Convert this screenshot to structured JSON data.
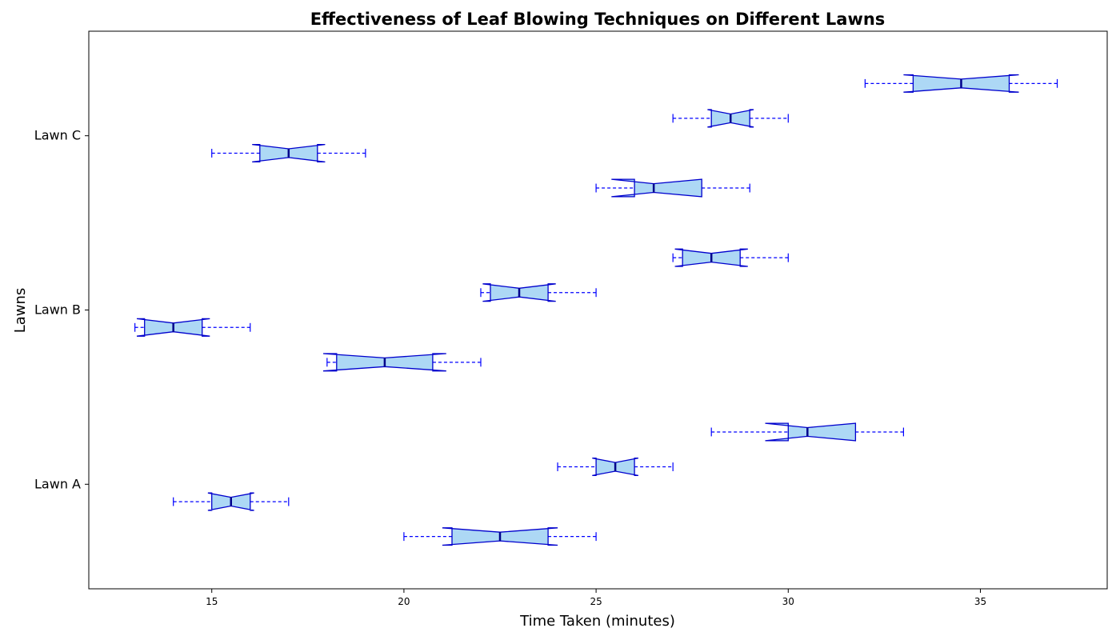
{
  "chart_data": {
    "type": "box",
    "orientation": "horizontal",
    "notched": true,
    "title": "Effectiveness of Leaf Blowing Techniques on Different Lawns",
    "xlabel": "Time Taken (minutes)",
    "ylabel": "Lawns",
    "xlim": [
      11.8,
      38.3
    ],
    "xticks": [
      15,
      20,
      25,
      30,
      35
    ],
    "categories": [
      "Lawn A",
      "Lawn B",
      "Lawn C"
    ],
    "colors": {
      "box_fill": "#add8f5",
      "box_edge": "#0000cd",
      "whisker": "#0000ff",
      "median": "#00008b"
    },
    "boxes": [
      {
        "category": "Lawn A",
        "offset": -0.3,
        "whislo": 20,
        "q1": 21.25,
        "notch_lo": 21.0,
        "med": 22.5,
        "notch_hi": 24.0,
        "q3": 23.75,
        "whishi": 25
      },
      {
        "category": "Lawn A",
        "offset": -0.1,
        "whislo": 14,
        "q1": 15.0,
        "notch_lo": 14.9,
        "med": 15.5,
        "notch_hi": 16.1,
        "q3": 16.0,
        "whishi": 17
      },
      {
        "category": "Lawn A",
        "offset": 0.1,
        "whislo": 24,
        "q1": 25.0,
        "notch_lo": 24.9,
        "med": 25.5,
        "notch_hi": 26.1,
        "q3": 26.0,
        "whishi": 27
      },
      {
        "category": "Lawn A",
        "offset": 0.3,
        "whislo": 28,
        "q1": 30.0,
        "notch_lo": 29.4,
        "med": 30.5,
        "notch_hi": 31.75,
        "q3": 31.75,
        "whishi": 33
      },
      {
        "category": "Lawn B",
        "offset": -0.3,
        "whislo": 18,
        "q1": 18.25,
        "notch_lo": 17.9,
        "med": 19.5,
        "notch_hi": 21.1,
        "q3": 20.75,
        "whishi": 22
      },
      {
        "category": "Lawn B",
        "offset": -0.1,
        "whislo": 13,
        "q1": 13.25,
        "notch_lo": 13.05,
        "med": 14.0,
        "notch_hi": 14.95,
        "q3": 14.75,
        "whishi": 16
      },
      {
        "category": "Lawn B",
        "offset": 0.1,
        "whislo": 22,
        "q1": 22.25,
        "notch_lo": 22.05,
        "med": 23.0,
        "notch_hi": 23.95,
        "q3": 23.75,
        "whishi": 25
      },
      {
        "category": "Lawn B",
        "offset": 0.3,
        "whislo": 27,
        "q1": 27.25,
        "notch_lo": 27.05,
        "med": 28.0,
        "notch_hi": 28.95,
        "q3": 28.75,
        "whishi": 30
      },
      {
        "category": "Lawn C",
        "offset": -0.3,
        "whislo": 25,
        "q1": 26.0,
        "notch_lo": 25.4,
        "med": 26.5,
        "notch_hi": 27.75,
        "q3": 27.75,
        "whishi": 29
      },
      {
        "category": "Lawn C",
        "offset": -0.1,
        "whislo": 15,
        "q1": 16.25,
        "notch_lo": 16.05,
        "med": 17.0,
        "notch_hi": 17.95,
        "q3": 17.75,
        "whishi": 19
      },
      {
        "category": "Lawn C",
        "offset": 0.1,
        "whislo": 27,
        "q1": 28.0,
        "notch_lo": 27.9,
        "med": 28.5,
        "notch_hi": 29.1,
        "q3": 29.0,
        "whishi": 30
      },
      {
        "category": "Lawn C",
        "offset": 0.3,
        "whislo": 32,
        "q1": 33.25,
        "notch_lo": 33.0,
        "med": 34.5,
        "notch_hi": 36.0,
        "q3": 35.75,
        "whishi": 37
      }
    ]
  }
}
